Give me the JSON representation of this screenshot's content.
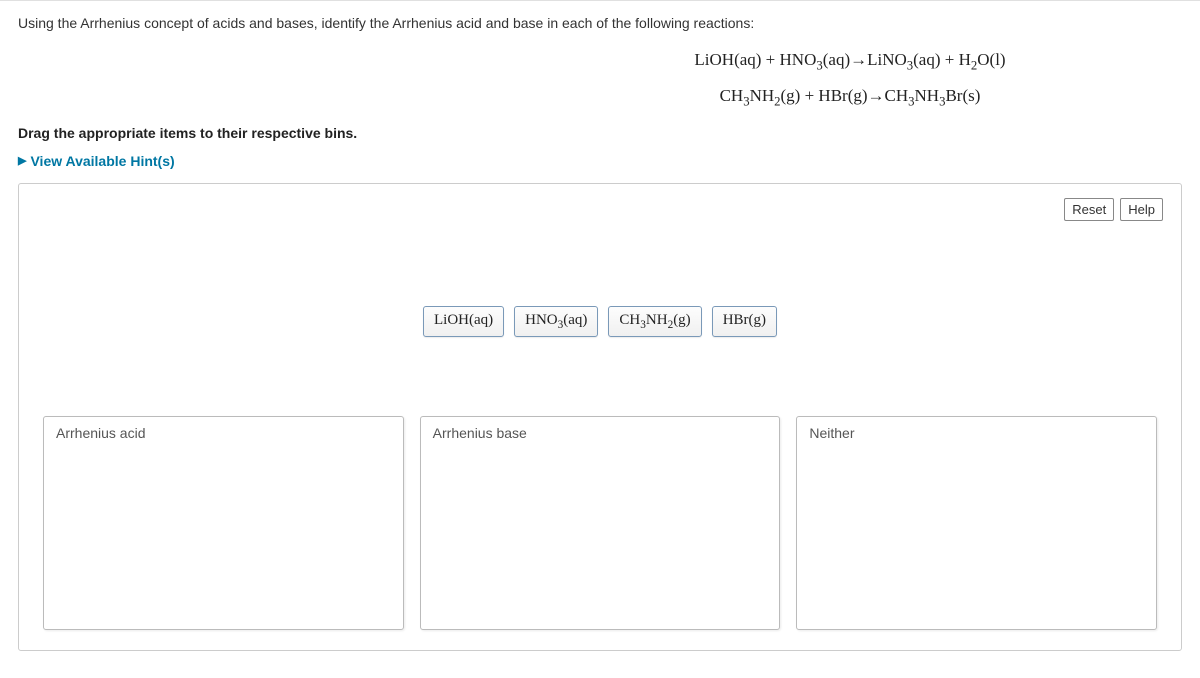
{
  "question": "Using the Arrhenius concept of acids and bases, identify the Arrhenius acid and base in each of the following reactions:",
  "equations": {
    "line1_html": "LiOH(aq) + HNO<sub>3</sub>(aq)→LiNO<sub>3</sub>(aq) + H<sub>2</sub>O(l)",
    "line2_html": "CH<sub>3</sub>NH<sub>2</sub>(g) + HBr(g)→CH<sub>3</sub>NH<sub>3</sub>Br(s)"
  },
  "instruction": "Drag the appropriate items to their respective bins.",
  "hints_label": "View Available Hint(s)",
  "buttons": {
    "reset": "Reset",
    "help": "Help"
  },
  "tiles": [
    {
      "id": "tile-lioh",
      "html": "LiOH(aq)"
    },
    {
      "id": "tile-hno3",
      "html": "HNO<sub>3</sub>(aq)"
    },
    {
      "id": "tile-ch3nh2",
      "html": "CH<sub>3</sub>NH<sub>2</sub>(g)"
    },
    {
      "id": "tile-hbr",
      "html": "HBr(g)"
    }
  ],
  "bins": [
    {
      "id": "bin-acid",
      "label": "Arrhenius acid"
    },
    {
      "id": "bin-base",
      "label": "Arrhenius base"
    },
    {
      "id": "bin-neither",
      "label": "Neither"
    }
  ],
  "colors": {
    "link": "#0077a3",
    "tile_border": "#7a99b8",
    "bin_border": "#bbbbbb",
    "panel_border": "#cccccc"
  }
}
